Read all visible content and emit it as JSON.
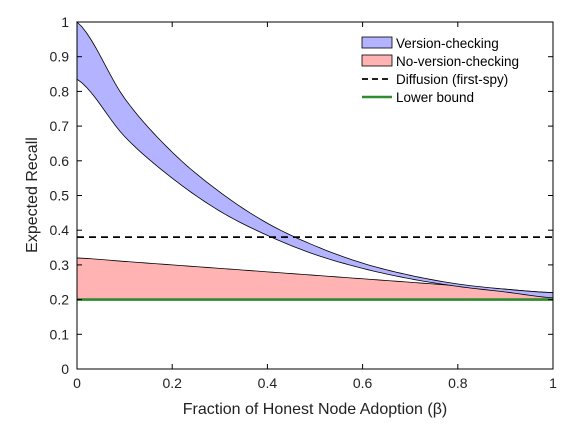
{
  "chart_data": {
    "type": "area",
    "xlabel": "Fraction of Honest Node Adoption (β)",
    "ylabel": "Expected Recall",
    "xlim": [
      0,
      1
    ],
    "ylim": [
      0,
      1
    ],
    "xticks": [
      0,
      0.2,
      0.4,
      0.6,
      0.8,
      1
    ],
    "xtick_labels": [
      "0",
      "0.2",
      "0.4",
      "0.6",
      "0.8",
      "1"
    ],
    "yticks": [
      0,
      0.1,
      0.2,
      0.3,
      0.4,
      0.5,
      0.6,
      0.7,
      0.8,
      0.9,
      1
    ],
    "ytick_labels": [
      "0",
      "0.1",
      "0.2",
      "0.3",
      "0.4",
      "0.5",
      "0.6",
      "0.7",
      "0.8",
      "0.9",
      "1"
    ],
    "grid": false,
    "legend_position": "top-right",
    "series": [
      {
        "name": "Version-checking",
        "kind": "band",
        "color": "#b3b3ff",
        "x": [
          0,
          0.1,
          0.2,
          0.3,
          0.4,
          0.5,
          0.6,
          0.7,
          0.8,
          0.9,
          1
        ],
        "upper": [
          1.0,
          0.78,
          0.625,
          0.51,
          0.42,
          0.355,
          0.305,
          0.27,
          0.245,
          0.23,
          0.22
        ],
        "lower": [
          0.835,
          0.67,
          0.55,
          0.455,
          0.385,
          0.33,
          0.29,
          0.26,
          0.238,
          0.222,
          0.205
        ]
      },
      {
        "name": "No-version-checking",
        "kind": "band",
        "color": "#ffb3b3",
        "x": [
          0,
          0.1,
          0.2,
          0.3,
          0.4,
          0.5,
          0.6,
          0.7,
          0.8,
          0.9,
          1
        ],
        "upper": [
          0.32,
          0.31,
          0.3,
          0.29,
          0.28,
          0.27,
          0.26,
          0.25,
          0.24,
          0.23,
          0.22
        ],
        "lower": [
          0.2,
          0.2,
          0.2,
          0.2,
          0.2,
          0.2,
          0.2,
          0.2,
          0.2,
          0.2,
          0.2
        ]
      },
      {
        "name": "Diffusion (first-spy)",
        "kind": "dashed-line",
        "color": "#000000",
        "x": [
          0,
          1
        ],
        "y": [
          0.38,
          0.38
        ]
      },
      {
        "name": "Lower bound",
        "kind": "line",
        "color": "#2e8b2e",
        "x": [
          0,
          1
        ],
        "y": [
          0.2,
          0.2
        ]
      }
    ]
  }
}
